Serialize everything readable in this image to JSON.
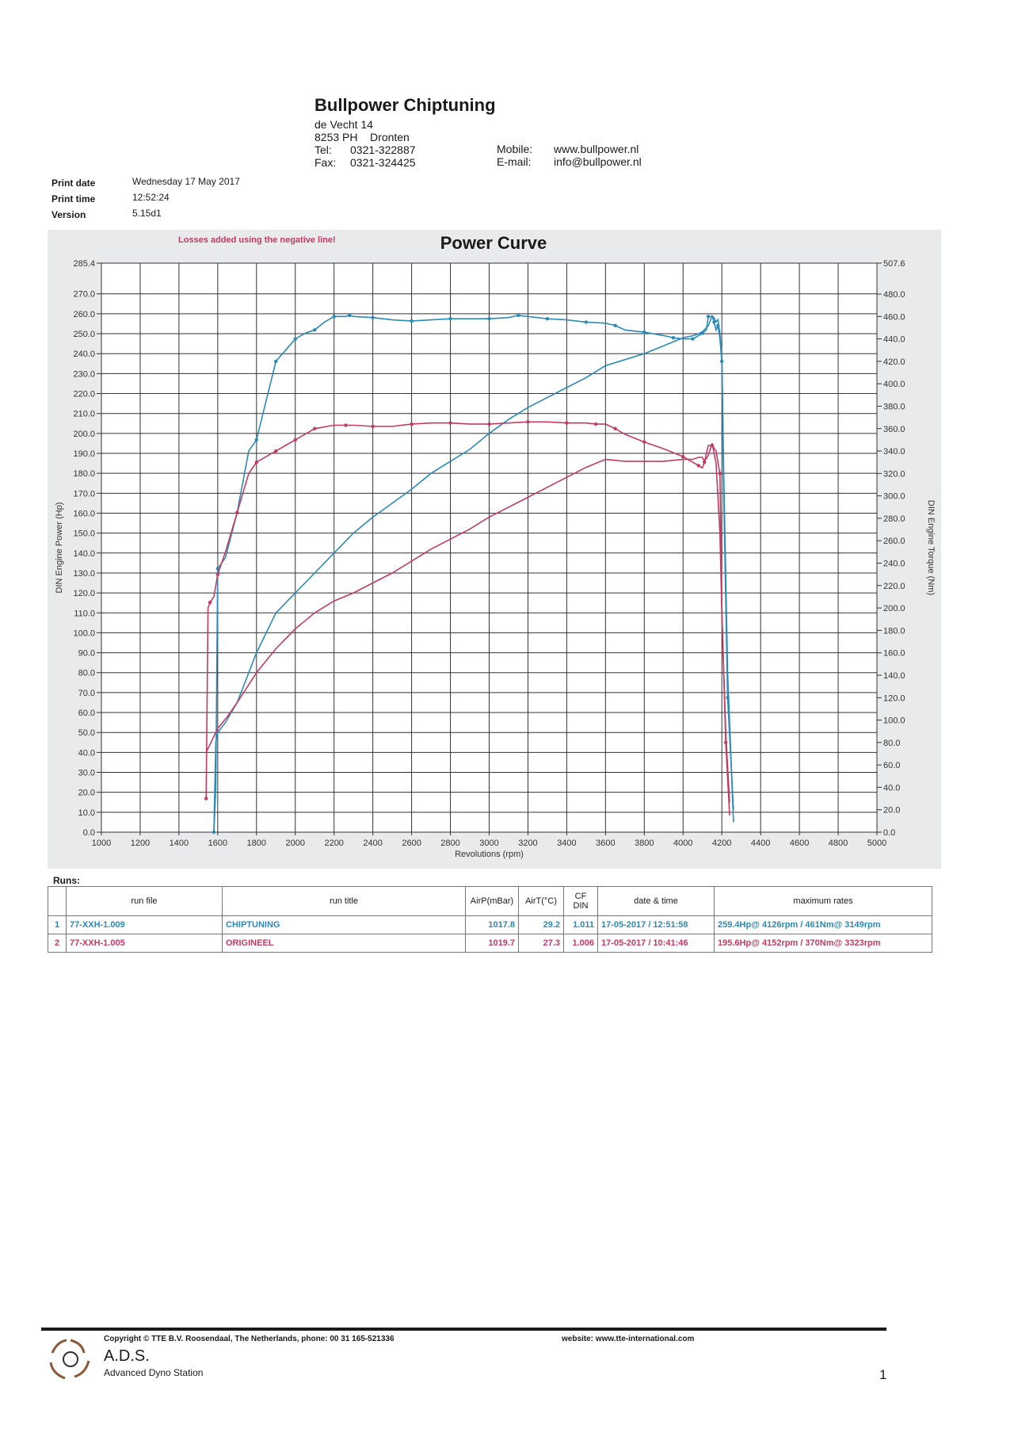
{
  "header": {
    "company": "Bullpower Chiptuning",
    "address_line1": "de Vecht 14",
    "address_line2": "8253 PH    Dronten",
    "tel_label": "Tel:",
    "tel": "0321-322887",
    "fax_label": "Fax:",
    "fax": "0321-324425",
    "mobile_label": "Mobile:",
    "mobile": "www.bullpower.nl",
    "email_label": "E-mail:",
    "email": "info@bullpower.nl"
  },
  "meta": {
    "print_date_label": "Print date",
    "print_date": "Wednesday 17 May 2017",
    "print_time_label": "Print time",
    "print_time": "12:52:24",
    "version_label": "Version",
    "version": "5.15d1"
  },
  "chart_data": {
    "type": "line",
    "title": "Power Curve",
    "note": "Losses added using the negative line!",
    "xlabel": "Revolutions (rpm)",
    "ylabel_left": "DIN Engine Power (Hp)",
    "ylabel_right": "DIN Engine Torque (Nm)",
    "xlim": [
      1000,
      5000
    ],
    "ylim_left": [
      0,
      285.4
    ],
    "ylim_right": [
      0,
      507.6
    ],
    "grid": true,
    "x_ticks": [
      "1000",
      "1200",
      "1400",
      "1600",
      "1800",
      "2000",
      "2200",
      "2400",
      "2600",
      "2800",
      "3000",
      "3200",
      "3400",
      "3600",
      "3800",
      "4000",
      "4200",
      "4400",
      "4600",
      "4800",
      "5000"
    ],
    "y_left_ticks": [
      "0.0",
      "10.0",
      "20.0",
      "30.0",
      "40.0",
      "50.0",
      "60.0",
      "70.0",
      "80.0",
      "90.0",
      "100.0",
      "110.0",
      "120.0",
      "130.0",
      "140.0",
      "150.0",
      "160.0",
      "170.0",
      "180.0",
      "190.0",
      "200.0",
      "210.0",
      "220.0",
      "230.0",
      "240.0",
      "250.0",
      "260.0",
      "270.0",
      "285.4"
    ],
    "y_right_ticks": [
      "0.0",
      "20.0",
      "40.0",
      "60.0",
      "80.0",
      "100.0",
      "120.0",
      "140.0",
      "160.0",
      "180.0",
      "200.0",
      "220.0",
      "240.0",
      "260.0",
      "280.0",
      "300.0",
      "320.0",
      "340.0",
      "360.0",
      "380.0",
      "400.0",
      "420.0",
      "440.0",
      "460.0",
      "480.0",
      "507.6"
    ],
    "series": [
      {
        "name": "CHIPTUNING",
        "color": "#2a8ab8",
        "axis": "torque",
        "x": [
          1580,
          1590,
          1600,
          1640,
          1700,
          1760,
          1800,
          1850,
          1900,
          1950,
          2000,
          2050,
          2100,
          2150,
          2200,
          2260,
          2280,
          2300,
          2400,
          2500,
          2600,
          2700,
          2800,
          2900,
          3000,
          3100,
          3150,
          3200,
          3300,
          3400,
          3500,
          3600,
          3650,
          3700,
          3800,
          3900,
          3950,
          4000,
          4050,
          4080,
          4100,
          4120,
          4130,
          4150,
          4160,
          4170,
          4180,
          4190,
          4200,
          4210,
          4230,
          4260
        ],
        "y": [
          0,
          40,
          235,
          245,
          285,
          340,
          350,
          385,
          420,
          430,
          440,
          445,
          448,
          455,
          460,
          460,
          461,
          460,
          459,
          457,
          456,
          457,
          458,
          458,
          458,
          459,
          461,
          460,
          458,
          457,
          455,
          454,
          452,
          448,
          446,
          443,
          441,
          440,
          440,
          443,
          445,
          448,
          460,
          460,
          455,
          448,
          452,
          440,
          420,
          300,
          120,
          20
        ]
      },
      {
        "name": "CHIPTUNING",
        "color": "#2a8ab8",
        "axis": "power",
        "x": [
          1580,
          1590,
          1600,
          1640,
          1700,
          1800,
          1900,
          2000,
          2100,
          2200,
          2300,
          2400,
          2500,
          2600,
          2700,
          2800,
          2900,
          3000,
          3100,
          3200,
          3300,
          3400,
          3500,
          3600,
          3700,
          3800,
          3900,
          4000,
          4050,
          4080,
          4100,
          4120,
          4130,
          4150,
          4160,
          4170,
          4180,
          4190,
          4200,
          4210,
          4230,
          4260
        ],
        "y": [
          0,
          45,
          50,
          55,
          65,
          90,
          110,
          120,
          130,
          140,
          150,
          158,
          165,
          172,
          180,
          186,
          192,
          200,
          207,
          213,
          218,
          223,
          228,
          234,
          237,
          240,
          244,
          248,
          249,
          250,
          251,
          253,
          254,
          259,
          258,
          256,
          257,
          250,
          240,
          180,
          80,
          5
        ]
      },
      {
        "name": "ORIGINEEL",
        "color": "#c23b63",
        "axis": "torque",
        "x": [
          1540,
          1550,
          1560,
          1580,
          1600,
          1640,
          1700,
          1760,
          1800,
          1850,
          1900,
          1950,
          2000,
          2050,
          2100,
          2200,
          2260,
          2300,
          2400,
          2500,
          2600,
          2700,
          2800,
          2900,
          3000,
          3100,
          3200,
          3300,
          3400,
          3500,
          3550,
          3600,
          3650,
          3700,
          3800,
          3900,
          4000,
          4050,
          4080,
          4100,
          4110,
          4130,
          4150,
          4170,
          4190,
          4200,
          4220,
          4240
        ],
        "y": [
          30,
          200,
          205,
          210,
          230,
          250,
          285,
          320,
          330,
          335,
          340,
          345,
          350,
          355,
          360,
          363,
          363,
          363,
          362,
          362,
          364,
          365,
          365,
          364,
          364,
          365,
          366,
          366,
          365,
          365,
          364,
          364,
          360,
          355,
          348,
          342,
          335,
          330,
          327,
          325,
          330,
          345,
          345,
          340,
          320,
          200,
          80,
          15
        ]
      },
      {
        "name": "ORIGINEEL",
        "color": "#c23b63",
        "axis": "power",
        "x": [
          1540,
          1550,
          1600,
          1650,
          1700,
          1800,
          1900,
          2000,
          2100,
          2200,
          2300,
          2400,
          2500,
          2600,
          2700,
          2800,
          2900,
          3000,
          3100,
          3200,
          3300,
          3400,
          3500,
          3600,
          3700,
          3800,
          3900,
          4000,
          4050,
          4080,
          4100,
          4110,
          4130,
          4150,
          4160,
          4170,
          4190,
          4200,
          4220,
          4240
        ],
        "y": [
          40,
          42,
          52,
          58,
          65,
          80,
          92,
          102,
          110,
          116,
          120,
          125,
          130,
          136,
          142,
          147,
          152,
          158,
          163,
          168,
          173,
          178,
          183,
          187,
          186,
          186,
          186,
          187,
          187,
          188,
          188,
          186,
          189,
          195,
          190,
          185,
          150,
          110,
          50,
          15
        ]
      }
    ]
  },
  "runs": {
    "label": "Runs:",
    "columns": [
      "run file",
      "run title",
      "AirP(mBar)",
      "AirT(°C)",
      "CF\nDIN",
      "date & time",
      "maximum rates"
    ],
    "rows": [
      {
        "index": "1",
        "file": "77-XXH-1.009",
        "title": "CHIPTUNING",
        "airp": "1017.8",
        "airt": "29.2",
        "cf": "1.011",
        "datetime": "17-05-2017 / 12:51:58",
        "max": "259.4Hp@ 4126rpm / 461Nm@ 3149rpm"
      },
      {
        "index": "2",
        "file": "77-XXH-1.005",
        "title": "ORIGINEEL",
        "airp": "1019.7",
        "airt": "27.3",
        "cf": "1.006",
        "datetime": "17-05-2017 / 10:41:46",
        "max": "195.6Hp@ 4152rpm / 370Nm@ 3323rpm"
      }
    ]
  },
  "footer": {
    "copyright": "Copyright © TTE B.V. Roosendaal, The Netherlands, phone: 00 31 165-521336",
    "website": "website: www.tte-international.com",
    "brand": "A.D.S.",
    "brand_sub": "Advanced Dyno Station",
    "page": "1"
  }
}
